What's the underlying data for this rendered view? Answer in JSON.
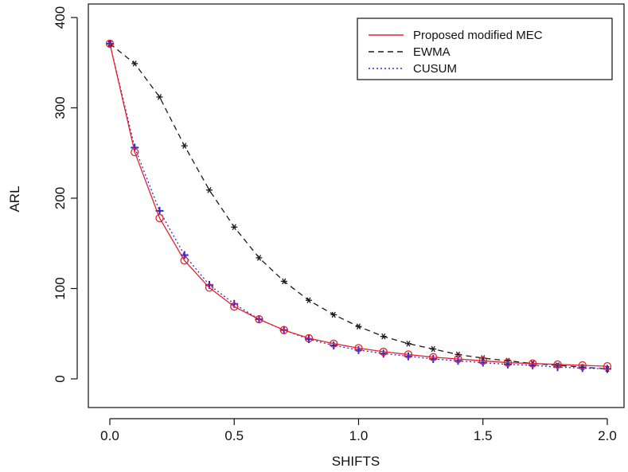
{
  "chart_data": {
    "type": "line",
    "title": "",
    "xlabel": "SHIFTS",
    "ylabel": "ARL",
    "xlim": [
      0.0,
      2.0
    ],
    "ylim": [
      0,
      400
    ],
    "x_ticks": [
      "0.0",
      "0.5",
      "1.0",
      "1.5",
      "2.0"
    ],
    "y_ticks": [
      "0",
      "100",
      "200",
      "300",
      "400"
    ],
    "x": [
      0.0,
      0.1,
      0.2,
      0.3,
      0.4,
      0.5,
      0.6,
      0.7,
      0.8,
      0.9,
      1.0,
      1.1,
      1.2,
      1.3,
      1.4,
      1.5,
      1.6,
      1.7,
      1.8,
      1.9,
      2.0
    ],
    "legend_position": "top-right",
    "grid": false,
    "series": [
      {
        "name": "Proposed modified MEC",
        "color": "#e8202a",
        "line_style": "solid",
        "marker": "circle",
        "values": [
          371,
          251,
          178,
          131,
          101,
          80,
          66,
          54,
          45,
          39,
          34,
          30,
          27,
          24,
          22,
          20,
          18,
          17,
          16,
          15,
          14
        ]
      },
      {
        "name": "EWMA",
        "color": "#1a1a1a",
        "line_style": "dashed",
        "marker": "asterisk",
        "values": [
          371,
          349,
          312,
          258,
          209,
          168,
          134,
          108,
          87,
          71,
          58,
          47,
          39,
          33,
          27,
          23,
          20,
          17,
          15,
          13,
          11
        ]
      },
      {
        "name": "CUSUM",
        "color": "#2b2bd6",
        "line_style": "dotted",
        "marker": "plus",
        "values": [
          371,
          256,
          186,
          137,
          104,
          83,
          66,
          54,
          44,
          37,
          32,
          28,
          25,
          22,
          20,
          18,
          16,
          15,
          13,
          12,
          11
        ]
      }
    ]
  }
}
